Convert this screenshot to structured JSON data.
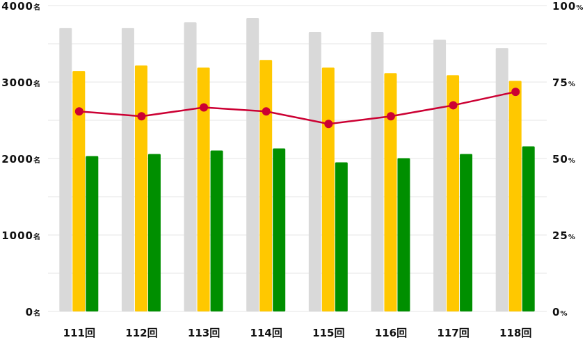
{
  "chart_data": {
    "type": "bar",
    "categories": [
      "111回",
      "112回",
      "113回",
      "114回",
      "115回",
      "116回",
      "117回",
      "118回"
    ],
    "series": [
      {
        "values": [
          3708,
          3708,
          3781,
          3836,
          3654,
          3654,
          3554,
          3444
        ],
        "color": "#d9d9d9",
        "axis": "left",
        "kind": "bar"
      },
      {
        "values": [
          3144,
          3216,
          3189,
          3289,
          3189,
          3116,
          3089,
          3016
        ],
        "color": "#ffc800",
        "axis": "left",
        "kind": "bar"
      },
      {
        "values": [
          2032,
          2059,
          2105,
          2132,
          1950,
          2005,
          2059,
          2159
        ],
        "color": "#008f00",
        "axis": "left",
        "kind": "bar"
      },
      {
        "values": [
          65.4,
          63.8,
          66.7,
          65.4,
          61.3,
          63.8,
          67.4,
          71.8
        ],
        "color": "#cc0033",
        "axis": "right",
        "kind": "line"
      }
    ],
    "left_axis": {
      "ylim": [
        0,
        4000
      ],
      "ticks": [
        {
          "value": "4000",
          "unit": "名"
        },
        {
          "value": "3000",
          "unit": "名"
        },
        {
          "value": "2000",
          "unit": "名"
        },
        {
          "value": "1000",
          "unit": "名"
        },
        {
          "value": "0",
          "unit": "名"
        }
      ]
    },
    "right_axis": {
      "ylim": [
        0,
        100
      ],
      "ticks": [
        {
          "value": "100",
          "unit": "%"
        },
        {
          "value": "75",
          "unit": "%"
        },
        {
          "value": "50",
          "unit": "%"
        },
        {
          "value": "25",
          "unit": "%"
        },
        {
          "value": "0",
          "unit": "%"
        }
      ]
    },
    "grid": true,
    "grid_color": "#e6e6e6"
  }
}
